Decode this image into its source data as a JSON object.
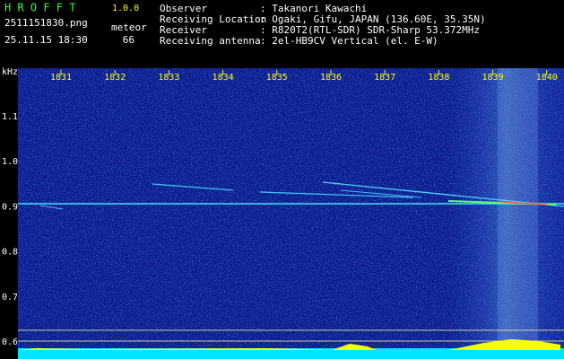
{
  "header": {
    "app": "H R O F F T",
    "version": "1.0.0",
    "filename": "2511151830.png",
    "mode": "meteor",
    "datetime": "25.11.15 18:30",
    "count": "66"
  },
  "info": [
    {
      "label": "Observer",
      "value": ": Takanori Kawachi"
    },
    {
      "label": "Receiving Location",
      "value": ": Ogaki, Gifu, JAPAN (136.60E, 35.35N)"
    },
    {
      "label": "Receiver",
      "value": ": R820T2(RTL-SDR) SDR-Sharp 53.372MHz"
    },
    {
      "label": "Receiving antenna",
      "value": ": 2el-HB9CV Vertical (el. E-W)"
    }
  ],
  "x_axis": {
    "labels": [
      "1831",
      "1832",
      "1833",
      "1834",
      "1835",
      "1836",
      "1837",
      "1838",
      "1839",
      "1840"
    ]
  },
  "y_axis": {
    "unit": "kHz",
    "labels": [
      "1.1",
      "1.0",
      "0.9",
      "0.8",
      "0.7",
      "0.6"
    ]
  }
}
